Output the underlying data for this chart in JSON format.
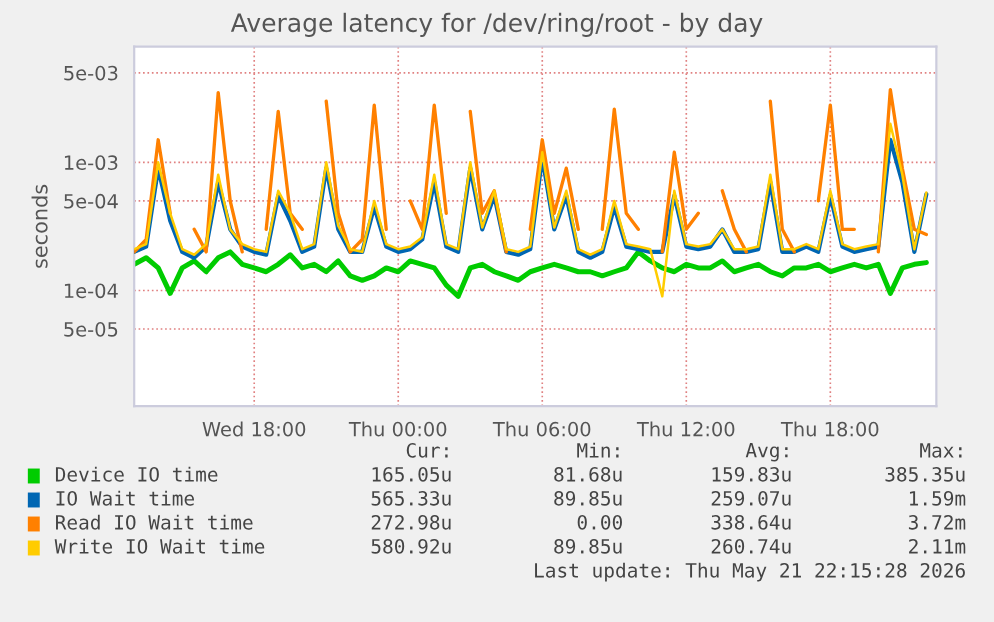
{
  "chart_data": {
    "type": "line",
    "title": "Average latency for /dev/ring/root - by day",
    "ylabel": "seconds",
    "log": "y",
    "grid": true,
    "legend": "bottom",
    "x": [
      "2026-05-20T13:00",
      "2026-05-20T13:30",
      "2026-05-20T14:00",
      "2026-05-20T14:30",
      "2026-05-20T15:00",
      "2026-05-20T15:30",
      "2026-05-20T16:00",
      "2026-05-20T16:30",
      "2026-05-20T17:00",
      "2026-05-20T17:30",
      "2026-05-20T18:00",
      "2026-05-20T18:30",
      "2026-05-20T19:00",
      "2026-05-20T19:30",
      "2026-05-20T20:00",
      "2026-05-20T20:30",
      "2026-05-20T21:00",
      "2026-05-20T21:30",
      "2026-05-20T22:00",
      "2026-05-20T22:30",
      "2026-05-20T23:00",
      "2026-05-20T23:30",
      "2026-05-21T00:00",
      "2026-05-21T00:30",
      "2026-05-21T01:00",
      "2026-05-21T01:30",
      "2026-05-21T02:00",
      "2026-05-21T02:30",
      "2026-05-21T03:00",
      "2026-05-21T03:30",
      "2026-05-21T04:00",
      "2026-05-21T04:30",
      "2026-05-21T05:00",
      "2026-05-21T05:30",
      "2026-05-21T06:00",
      "2026-05-21T06:30",
      "2026-05-21T07:00",
      "2026-05-21T07:30",
      "2026-05-21T08:00",
      "2026-05-21T08:30",
      "2026-05-21T09:00",
      "2026-05-21T09:30",
      "2026-05-21T10:00",
      "2026-05-21T10:30",
      "2026-05-21T11:00",
      "2026-05-21T11:30",
      "2026-05-21T12:00",
      "2026-05-21T12:30",
      "2026-05-21T13:00",
      "2026-05-21T13:30",
      "2026-05-21T14:00",
      "2026-05-21T14:30",
      "2026-05-21T15:00",
      "2026-05-21T15:30",
      "2026-05-21T16:00",
      "2026-05-21T16:30",
      "2026-05-21T17:00",
      "2026-05-21T17:30",
      "2026-05-21T18:00",
      "2026-05-21T18:30",
      "2026-05-21T19:00",
      "2026-05-21T19:30",
      "2026-05-21T20:00",
      "2026-05-21T20:30",
      "2026-05-21T21:00",
      "2026-05-21T21:30",
      "2026-05-21T22:00"
    ],
    "xlim": [
      "2026-05-20T13:00",
      "2026-05-21T22:25"
    ],
    "xticks": [
      {
        "value": "2026-05-20T18:00",
        "label": "Wed 18:00"
      },
      {
        "value": "2026-05-21T00:00",
        "label": "Thu 00:00"
      },
      {
        "value": "2026-05-21T06:00",
        "label": "Thu 06:00"
      },
      {
        "value": "2026-05-21T12:00",
        "label": "Thu 12:00"
      },
      {
        "value": "2026-05-21T18:00",
        "label": "Thu 18:00"
      }
    ],
    "ylim": [
      1.25e-05,
      0.008
    ],
    "yticks": [
      {
        "value": 5e-05,
        "label": "5e-05"
      },
      {
        "value": 0.0001,
        "label": "1e-04"
      },
      {
        "value": 0.0005,
        "label": "5e-04"
      },
      {
        "value": 0.001,
        "label": "1e-03"
      },
      {
        "value": 0.005,
        "label": "5e-03"
      }
    ],
    "series": [
      {
        "name": "Device IO time",
        "color": "#00cc00",
        "values": [
          0.00016,
          0.00018,
          0.00015,
          9.5e-05,
          0.00015,
          0.00017,
          0.00014,
          0.00018,
          0.0002,
          0.00016,
          0.00015,
          0.00014,
          0.00016,
          0.00019,
          0.00015,
          0.00016,
          0.00014,
          0.00017,
          0.00013,
          0.00012,
          0.00013,
          0.00015,
          0.00014,
          0.00017,
          0.00016,
          0.00015,
          0.00011,
          9e-05,
          0.00015,
          0.00016,
          0.00014,
          0.00013,
          0.00012,
          0.00014,
          0.00015,
          0.00016,
          0.00015,
          0.00014,
          0.00014,
          0.00013,
          0.00014,
          0.00015,
          0.0002,
          0.00017,
          0.00015,
          0.00014,
          0.00016,
          0.00015,
          0.00015,
          0.00017,
          0.00014,
          0.00015,
          0.00016,
          0.00014,
          0.00013,
          0.00015,
          0.00015,
          0.00016,
          0.00014,
          0.00015,
          0.00016,
          0.00015,
          0.00016,
          9.5e-05,
          0.00015,
          0.00016,
          0.000165
        ]
      },
      {
        "name": "IO Wait time",
        "color": "#0066b3",
        "values": [
          0.0002,
          0.00022,
          0.0009,
          0.00035,
          0.0002,
          0.00018,
          0.00022,
          0.0007,
          0.0003,
          0.00022,
          0.0002,
          0.00019,
          0.00055,
          0.00035,
          0.0002,
          0.00022,
          0.0009,
          0.0003,
          0.0002,
          0.0002,
          0.00045,
          0.00022,
          0.0002,
          0.00021,
          0.00025,
          0.0007,
          0.00022,
          0.0002,
          0.0009,
          0.0003,
          0.00055,
          0.0002,
          0.00019,
          0.00021,
          0.0011,
          0.0003,
          0.00055,
          0.0002,
          0.00018,
          0.0002,
          0.00045,
          0.00022,
          0.00021,
          0.0002,
          0.0002,
          0.00055,
          0.00022,
          0.00021,
          0.00022,
          0.0003,
          0.0002,
          0.0002,
          0.00021,
          0.0007,
          0.0002,
          0.0002,
          0.00022,
          0.0002,
          0.00055,
          0.00022,
          0.0002,
          0.00021,
          0.00022,
          0.0015,
          0.0007,
          0.0002,
          0.000565
        ]
      },
      {
        "name": "Read IO Wait time",
        "color": "#ff8000",
        "values": [
          0.0002,
          0.00025,
          0.0015,
          0.0004,
          null,
          0.0003,
          0.0002,
          0.0035,
          0.0005,
          0.0002,
          null,
          0.0003,
          0.0025,
          0.0004,
          0.0003,
          null,
          0.003,
          0.0004,
          0.0002,
          0.00025,
          0.0028,
          0.0003,
          null,
          0.0005,
          0.0003,
          0.0028,
          0.0004,
          null,
          0.0025,
          0.0004,
          0.0006,
          0.0002,
          null,
          0.0003,
          0.0015,
          0.0004,
          0.0009,
          0.0003,
          null,
          0.0003,
          0.0026,
          0.0004,
          0.0003,
          null,
          0.0002,
          0.0012,
          0.0003,
          0.0004,
          null,
          0.0006,
          0.0003,
          0.0002,
          null,
          0.003,
          0.0003,
          0.0002,
          null,
          0.0005,
          0.0028,
          0.0003,
          0.0003,
          null,
          0.0002,
          0.0037,
          0.0009,
          0.0003,
          0.00027298
        ]
      },
      {
        "name": "Write IO Wait time",
        "color": "#ffcc00",
        "values": [
          0.00021,
          0.00023,
          0.001,
          0.0004,
          0.00021,
          0.00019,
          0.00023,
          0.0008,
          0.0003,
          0.00023,
          0.00021,
          0.0002,
          0.0006,
          0.0004,
          0.00021,
          0.00023,
          0.001,
          0.00032,
          0.00021,
          0.0002,
          0.0005,
          0.00023,
          0.00021,
          0.00022,
          0.00026,
          0.0008,
          0.00023,
          0.00021,
          0.001,
          0.00031,
          0.0006,
          0.00021,
          0.0002,
          0.00022,
          0.0012,
          0.00031,
          0.0006,
          0.00021,
          0.00019,
          0.00021,
          0.0005,
          0.00023,
          0.00022,
          0.00021,
          9e-05,
          0.0006,
          0.00023,
          0.00022,
          0.00023,
          0.0003,
          0.00021,
          0.00021,
          0.00022,
          0.0008,
          0.00021,
          0.00021,
          0.00023,
          0.00021,
          0.0006,
          0.00023,
          0.00021,
          0.00022,
          0.00023,
          0.002,
          0.0008,
          0.00021,
          0.00058092
        ]
      }
    ],
    "annotations": [
      "Cur:",
      "Min:",
      "Avg:",
      "Max:",
      "165.05u",
      "81.68u",
      "159.83u",
      "385.35u",
      "565.33u",
      "89.85u",
      "259.07u",
      "1.59m",
      "272.98u",
      "0.00",
      "338.64u",
      "3.72m",
      "580.92u",
      "89.85u",
      "260.74u",
      "2.11m",
      "Last update: Thu May 21 22:15:28 2026"
    ]
  }
}
